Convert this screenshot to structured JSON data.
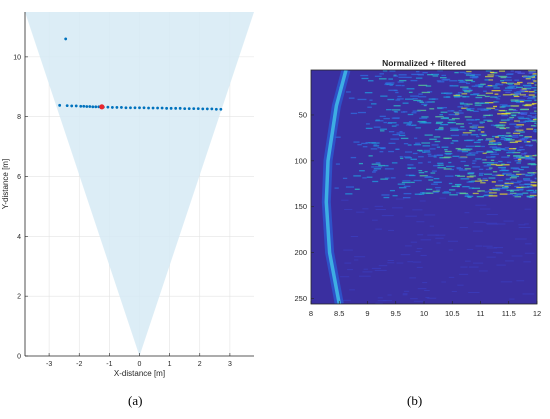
{
  "captions": {
    "a": "(a)",
    "b": "(b)"
  },
  "chart_data": [
    {
      "type": "scatter",
      "title": "",
      "xlabel": "X-distance [m]",
      "ylabel": "Y-distance [m]",
      "xlim": [
        -3.8,
        3.8
      ],
      "ylim": [
        0,
        11.5
      ],
      "xticks": [
        -3,
        -2,
        -1,
        0,
        1,
        2,
        3
      ],
      "yticks": [
        0,
        2,
        4,
        6,
        8,
        10
      ],
      "grid": true,
      "fov_cone": {
        "apex": [
          0,
          0
        ],
        "left_top": [
          -3.8,
          11.5
        ],
        "right_top": [
          3.8,
          11.5
        ],
        "color": "#d6eaf5"
      },
      "series": [
        {
          "color": "#0072bd",
          "points": [
            [
              -2.45,
              10.6
            ],
            [
              -2.65,
              8.38
            ],
            [
              -2.4,
              8.37
            ],
            [
              -2.25,
              8.36
            ],
            [
              -2.1,
              8.36
            ],
            [
              -1.95,
              8.35
            ],
            [
              -1.85,
              8.35
            ],
            [
              -1.75,
              8.34
            ],
            [
              -1.65,
              8.34
            ],
            [
              -1.55,
              8.33
            ],
            [
              -1.45,
              8.33
            ],
            [
              -1.35,
              8.33
            ],
            [
              -1.2,
              8.32
            ],
            [
              -1.05,
              8.32
            ],
            [
              -0.9,
              8.31
            ],
            [
              -0.75,
              8.31
            ],
            [
              -0.6,
              8.31
            ],
            [
              -0.45,
              8.3
            ],
            [
              -0.3,
              8.3
            ],
            [
              -0.15,
              8.3
            ],
            [
              0.0,
              8.3
            ],
            [
              0.15,
              8.3
            ],
            [
              0.3,
              8.29
            ],
            [
              0.45,
              8.29
            ],
            [
              0.6,
              8.29
            ],
            [
              0.75,
              8.29
            ],
            [
              0.9,
              8.28
            ],
            [
              1.05,
              8.28
            ],
            [
              1.2,
              8.28
            ],
            [
              1.35,
              8.28
            ],
            [
              1.5,
              8.27
            ],
            [
              1.65,
              8.27
            ],
            [
              1.8,
              8.27
            ],
            [
              1.95,
              8.27
            ],
            [
              2.1,
              8.26
            ],
            [
              2.25,
              8.26
            ],
            [
              2.4,
              8.26
            ],
            [
              2.55,
              8.25
            ],
            [
              2.7,
              8.25
            ]
          ]
        },
        {
          "color": "#e8262d",
          "points": [
            [
              -1.25,
              8.33
            ]
          ]
        }
      ]
    },
    {
      "type": "heatmap",
      "title": "Normalized + filtered",
      "xlabel": "",
      "ylabel": "",
      "xlim": [
        8,
        12
      ],
      "ylim": [
        1,
        256
      ],
      "y_reversed": true,
      "xticks": [
        8,
        8.5,
        9,
        9.5,
        10,
        10.5,
        11,
        11.5,
        12
      ],
      "xticklabels": [
        "8",
        "8.5",
        "9",
        "9.5",
        "10",
        "10.5",
        "11",
        "11.5",
        "12"
      ],
      "yticks": [
        50,
        100,
        150,
        200,
        250
      ],
      "colormap": "parula",
      "background_color": "#3a2fa0",
      "ridge": {
        "description_points": [
          [
            8.62,
            1
          ],
          [
            8.45,
            40
          ],
          [
            8.3,
            100
          ],
          [
            8.27,
            145
          ],
          [
            8.33,
            200
          ],
          [
            8.5,
            256
          ]
        ],
        "color": "#3fb8e6"
      },
      "upper_region_rows": [
        1,
        140
      ],
      "lower_region_rows": [
        140,
        256
      ]
    }
  ]
}
